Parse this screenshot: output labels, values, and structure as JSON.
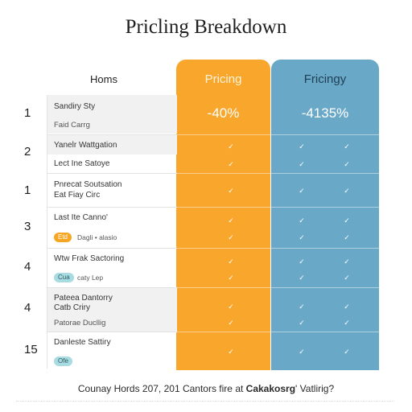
{
  "header": {
    "title": "Pricling Breakdown"
  },
  "table": {
    "items_header": "Homs",
    "plans": [
      {
        "name": "Pricing",
        "discount": "-40%",
        "color": "#f9a72c"
      },
      {
        "name": "Fricingy",
        "discount": "-4135%",
        "color": "#6aa8c7"
      }
    ],
    "rows": [
      {
        "num": "1",
        "lines": [
          "Sandiry Sty",
          "Faid Carrg"
        ]
      },
      {
        "num": "2",
        "lines": [
          "Yanelr Wattgation",
          "Lect Ine Satoye"
        ]
      },
      {
        "num": "1",
        "lines": [
          "Pnrecat Soutsation",
          "Eat Fiay Circ"
        ]
      },
      {
        "num": "3",
        "lines": [
          "Last Ite Canno'"
        ],
        "tag": "Etd",
        "tag_note": "Dagli • alasio"
      },
      {
        "num": "4",
        "lines": [
          "Wtw Frak Sactoring"
        ],
        "tag": "Cua",
        "tag_note": "caty Lep"
      },
      {
        "num": "4",
        "lines": [
          "Pateea Dantorry",
          "Catb Criry",
          "Patorae Ducllig"
        ]
      },
      {
        "num": "15",
        "lines": [
          "Danleste Sattiry"
        ],
        "tag": "Ofe",
        "tag_note": ""
      }
    ]
  },
  "footer": {
    "text_before": "Counay Hords 207, 201 Cantors fire at ",
    "text_bold": "Cakakosrg",
    "text_after": "' Vatlirig?"
  }
}
